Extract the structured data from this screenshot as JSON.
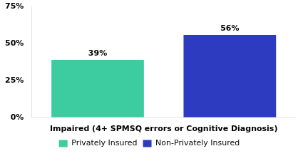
{
  "chart_data": {
    "type": "bar",
    "categories": [
      "Privately Insured",
      "Non-Privately Insured"
    ],
    "values": [
      39,
      56
    ],
    "value_labels": [
      "39%",
      "56%"
    ],
    "colors": [
      "#3dcca0",
      "#2c3bbf"
    ],
    "xlabel": "Impaired (4+ SPMSQ errors or Cognitive Diagnosis)",
    "ylim": [
      0,
      75
    ],
    "yticks": [
      {
        "value": 0,
        "label": "0%"
      },
      {
        "value": 25,
        "label": "25%"
      },
      {
        "value": 50,
        "label": "50%"
      },
      {
        "value": 75,
        "label": "75%"
      }
    ],
    "grid": false,
    "legend": "bottom",
    "data_labels": true,
    "tick_labels": "y"
  }
}
